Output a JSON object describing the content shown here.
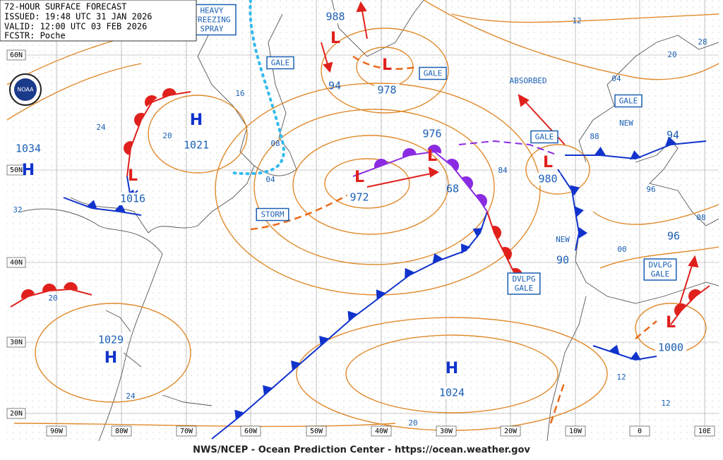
{
  "header": {
    "title": "72-HOUR SURFACE FORECAST",
    "issued": "ISSUED: 19:48 UTC 31 JAN 2026",
    "valid": "VALID: 12:00 UTC 03 FEB 2026",
    "forecaster": "FCSTR: Poche"
  },
  "footer": "NWS/NCEP - Ocean Prediction Center - https://ocean.weather.gov",
  "logo": "NOAA",
  "lat_labels": [
    "60N",
    "50N",
    "40N",
    "30N",
    "20N"
  ],
  "lon_labels": [
    "90W",
    "80W",
    "70W",
    "60W",
    "50W",
    "40W",
    "30W",
    "20W",
    "10W",
    "0",
    "10E"
  ],
  "boxes": [
    {
      "lines": [
        "HEAVY",
        "FREEZING",
        "SPRAY"
      ]
    },
    {
      "lines": [
        "GALE"
      ]
    },
    {
      "lines": [
        "GALE"
      ]
    },
    {
      "lines": [
        "GALE"
      ]
    },
    {
      "lines": [
        "GALE"
      ]
    },
    {
      "lines": [
        "STORM"
      ]
    },
    {
      "lines": [
        "DVLPG",
        "GALE"
      ]
    },
    {
      "lines": [
        "DVLPG",
        "GALE"
      ]
    }
  ],
  "annotations": [
    "ABSORBED",
    "NEW",
    "NEW"
  ],
  "centers": [
    {
      "symbol": "H",
      "pressure": "1021"
    },
    {
      "symbol": "H",
      "pressure": "1034"
    },
    {
      "symbol": "L",
      "pressure": "1016"
    },
    {
      "symbol": "H",
      "pressure": "1029"
    },
    {
      "symbol": "L",
      "pressure": "972"
    },
    {
      "symbol": "L",
      "pressure": "978"
    },
    {
      "symbol": "L",
      "pressure": "988"
    },
    {
      "symbol": "L",
      "pressure": "980"
    },
    {
      "symbol": "H",
      "pressure": "1024"
    },
    {
      "symbol": "L",
      "pressure": "1000"
    },
    {
      "symbol": "L"
    }
  ],
  "isobar_labels": [
    "12",
    "20",
    "28",
    "04",
    "24",
    "20",
    "16",
    "08",
    "04",
    "32",
    "84",
    "88",
    "96",
    "94",
    "94",
    "68",
    "90",
    "00",
    "08",
    "96",
    "976",
    "20",
    "24",
    "20",
    "12",
    "12"
  ]
}
